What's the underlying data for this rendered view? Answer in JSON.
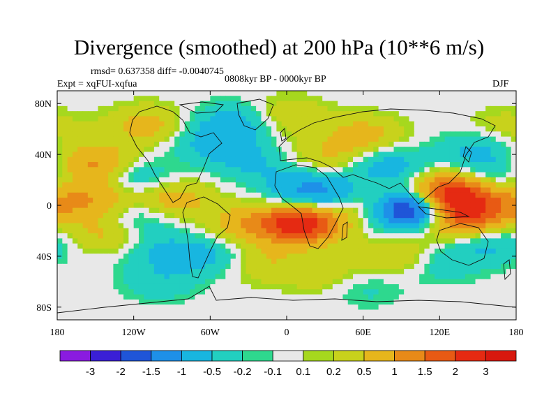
{
  "title": "Divergence (smoothed) at 200 hPa (10**6 m/s)",
  "stats_line": "rmsd= 0.637358 diff= -0.0040745",
  "expt_line": "Expt = xqFUI-xqfua",
  "period_line": "0808kyr BP - 0000kyr BP",
  "season": "DJF",
  "chart_data": {
    "type": "heatmap",
    "title": "Divergence (smoothed) at 200 hPa (10**6 m/s)",
    "xlabel": "",
    "ylabel": "",
    "xlim": [
      -180,
      180
    ],
    "ylim": [
      -90,
      90
    ],
    "x_ticks": [
      {
        "value": -180,
        "label": "180"
      },
      {
        "value": -120,
        "label": "120W"
      },
      {
        "value": -60,
        "label": "60W"
      },
      {
        "value": 0,
        "label": "0"
      },
      {
        "value": 60,
        "label": "60E"
      },
      {
        "value": 120,
        "label": "120E"
      },
      {
        "value": 180,
        "label": "180"
      }
    ],
    "y_ticks": [
      {
        "value": 80,
        "label": "80N"
      },
      {
        "value": 40,
        "label": "40N"
      },
      {
        "value": 0,
        "label": "0"
      },
      {
        "value": -40,
        "label": "40S"
      },
      {
        "value": -80,
        "label": "80S"
      }
    ],
    "colorbar": {
      "levels": [
        "-3",
        "-2",
        "-1.5",
        "-1",
        "-0.5",
        "-0.2",
        "-0.1",
        "0.1",
        "0.2",
        "0.5",
        "1",
        "1.5",
        "2",
        "3"
      ],
      "colors": [
        "#8A1BE0",
        "#3A1FD6",
        "#1F55D8",
        "#1E90E8",
        "#18B6E0",
        "#22CFC0",
        "#2ED88E",
        "#E8E8E8",
        "#A6D81E",
        "#C8D21C",
        "#E6B61C",
        "#E88A18",
        "#E85A14",
        "#E52A12",
        "#D8180E"
      ]
    },
    "features": [
      {
        "lon": -110,
        "lat": 63,
        "value": 0.7
      },
      {
        "lon": -150,
        "lat": 32,
        "value": 1.2
      },
      {
        "lon": -120,
        "lat": 22,
        "value": -0.7
      },
      {
        "lon": -150,
        "lat": 5,
        "value": 0.9
      },
      {
        "lon": -90,
        "lat": 5,
        "value": 0.8
      },
      {
        "lon": -120,
        "lat": -10,
        "value": -0.6
      },
      {
        "lon": -140,
        "lat": -22,
        "value": 0.7
      },
      {
        "lon": -100,
        "lat": -35,
        "value": -0.5
      },
      {
        "lon": -60,
        "lat": 50,
        "value": -0.6
      },
      {
        "lon": -40,
        "lat": 65,
        "value": -0.7
      },
      {
        "lon": -30,
        "lat": 35,
        "value": -0.5
      },
      {
        "lon": -30,
        "lat": -15,
        "value": 0.8
      },
      {
        "lon": -60,
        "lat": -40,
        "value": -0.6
      },
      {
        "lon": -20,
        "lat": -45,
        "value": 0.5
      },
      {
        "lon": 8,
        "lat": 20,
        "value": -0.5
      },
      {
        "lon": 15,
        "lat": 5,
        "value": -0.6
      },
      {
        "lon": 12,
        "lat": -14,
        "value": 2.5
      },
      {
        "lon": 40,
        "lat": 10,
        "value": -1.0
      },
      {
        "lon": 30,
        "lat": 35,
        "value": 0.6
      },
      {
        "lon": 60,
        "lat": 55,
        "value": 0.7
      },
      {
        "lon": 60,
        "lat": 5,
        "value": 0.9
      },
      {
        "lon": 80,
        "lat": 30,
        "value": -0.8
      },
      {
        "lon": 100,
        "lat": -2,
        "value": -3.0
      },
      {
        "lon": 125,
        "lat": 8,
        "value": 2.8
      },
      {
        "lon": 135,
        "lat": -10,
        "value": 1.8
      },
      {
        "lon": 150,
        "lat": 45,
        "value": -0.6
      },
      {
        "lon": 165,
        "lat": 25,
        "value": -0.5
      },
      {
        "lon": 170,
        "lat": 0,
        "value": 0.8
      },
      {
        "lon": 160,
        "lat": -30,
        "value": -0.6
      },
      {
        "lon": 90,
        "lat": -40,
        "value": 0.6
      },
      {
        "lon": 120,
        "lat": -45,
        "value": -0.5
      },
      {
        "lon": 30,
        "lat": -55,
        "value": 0.4
      },
      {
        "lon": -100,
        "lat": -60,
        "value": -0.4
      },
      {
        "lon": 60,
        "lat": -65,
        "value": -0.3
      },
      {
        "lon": 0,
        "lat": 70,
        "value": 0.5
      },
      {
        "lon": 170,
        "lat": 60,
        "value": 0.4
      }
    ]
  }
}
